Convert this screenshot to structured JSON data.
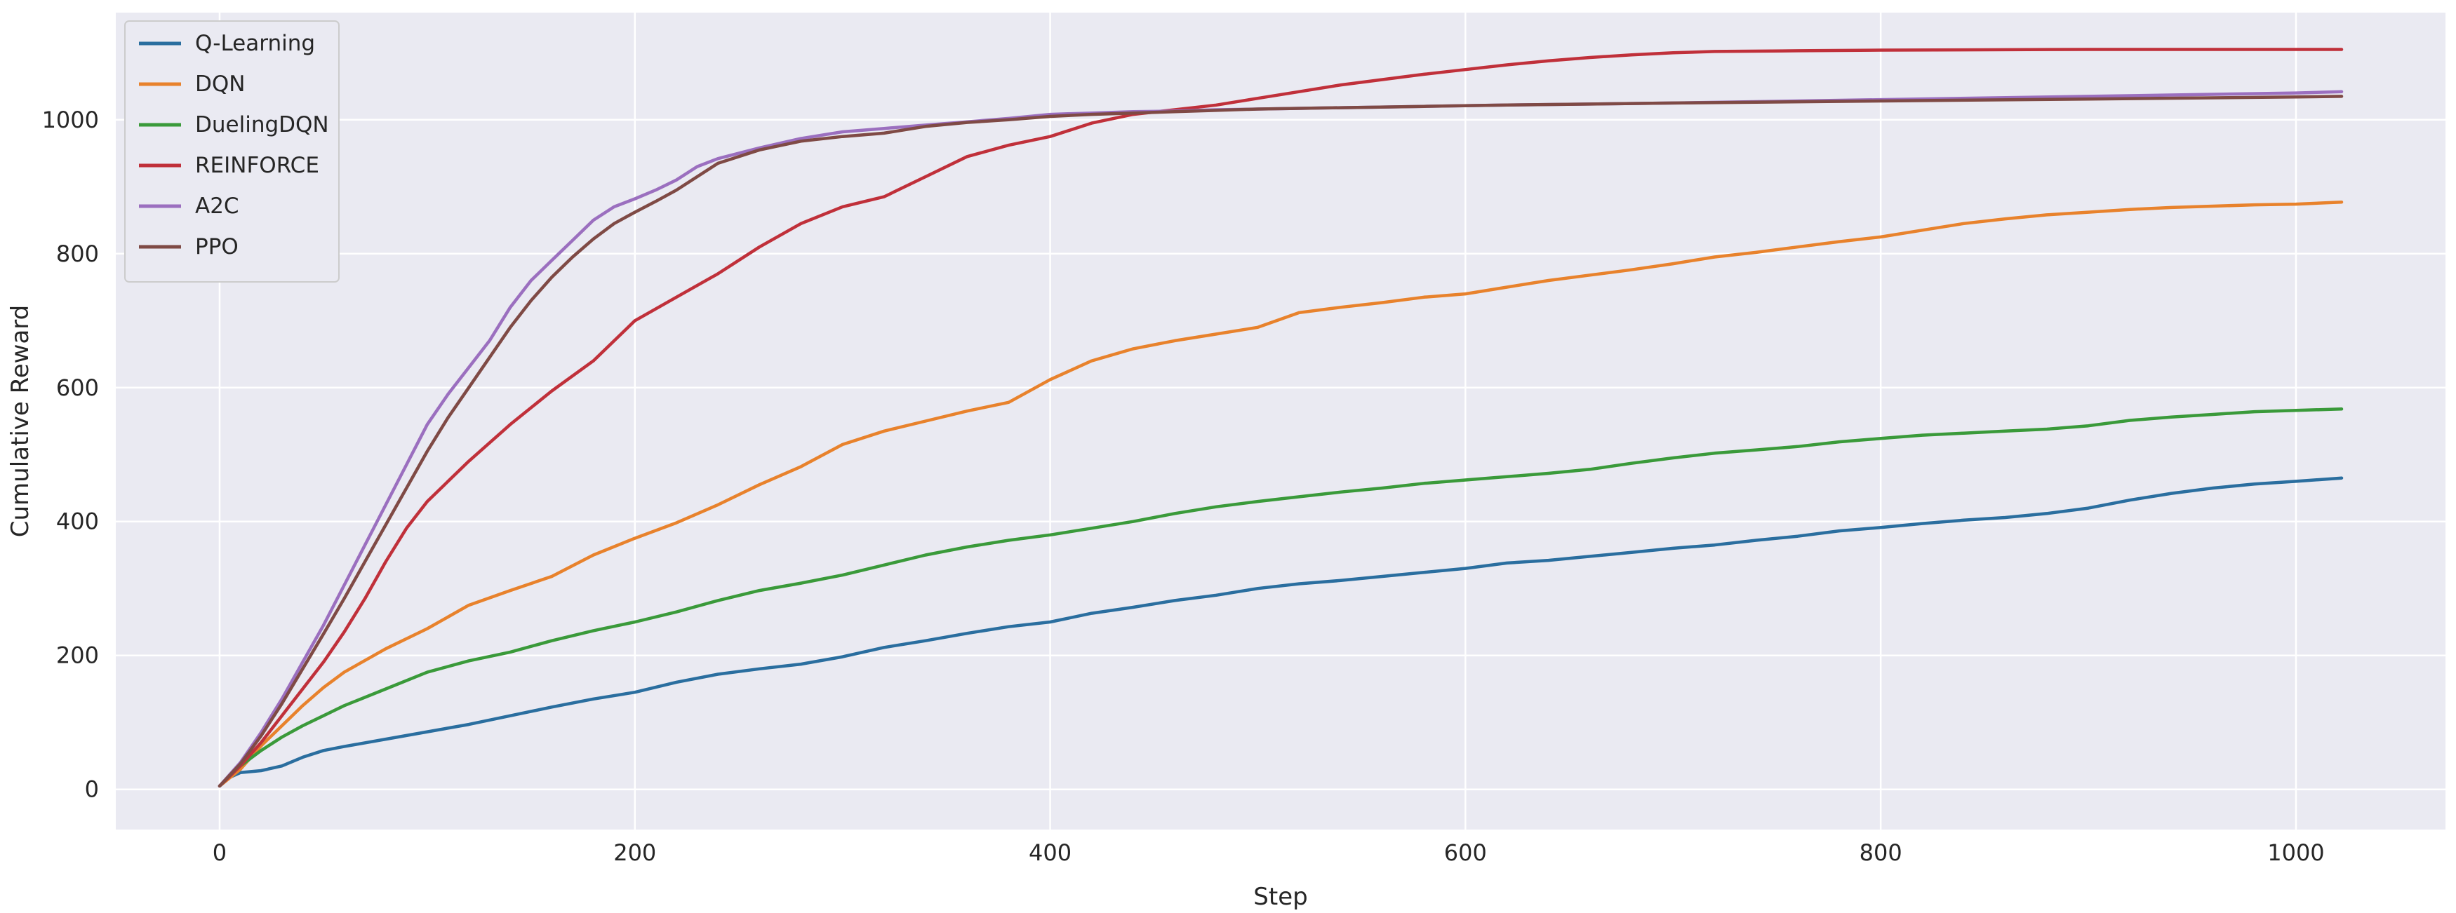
{
  "chart_data": {
    "type": "line",
    "title": "",
    "xlabel": "Step",
    "ylabel": "Cumulative Reward",
    "xlim": [
      -50,
      1072
    ],
    "ylim": [
      -60,
      1160
    ],
    "xticks": [
      0,
      200,
      400,
      600,
      800,
      1000
    ],
    "yticks": [
      0,
      200,
      400,
      600,
      800,
      1000
    ],
    "grid": true,
    "legend_position": "top-left",
    "background": "#eaeaf2",
    "series": [
      {
        "name": "Q-Learning",
        "color": "#2a6e9f",
        "points": [
          [
            0,
            5
          ],
          [
            5,
            18
          ],
          [
            10,
            25
          ],
          [
            20,
            28
          ],
          [
            30,
            35
          ],
          [
            40,
            48
          ],
          [
            50,
            58
          ],
          [
            60,
            64
          ],
          [
            80,
            75
          ],
          [
            100,
            86
          ],
          [
            120,
            97
          ],
          [
            140,
            110
          ],
          [
            160,
            123
          ],
          [
            180,
            135
          ],
          [
            200,
            145
          ],
          [
            220,
            160
          ],
          [
            240,
            172
          ],
          [
            260,
            180
          ],
          [
            280,
            187
          ],
          [
            300,
            198
          ],
          [
            320,
            212
          ],
          [
            340,
            222
          ],
          [
            360,
            233
          ],
          [
            380,
            243
          ],
          [
            400,
            250
          ],
          [
            420,
            263
          ],
          [
            440,
            272
          ],
          [
            460,
            282
          ],
          [
            480,
            290
          ],
          [
            500,
            300
          ],
          [
            520,
            307
          ],
          [
            540,
            312
          ],
          [
            560,
            318
          ],
          [
            580,
            324
          ],
          [
            600,
            330
          ],
          [
            620,
            338
          ],
          [
            640,
            342
          ],
          [
            660,
            348
          ],
          [
            680,
            354
          ],
          [
            700,
            360
          ],
          [
            720,
            365
          ],
          [
            740,
            372
          ],
          [
            760,
            378
          ],
          [
            780,
            386
          ],
          [
            800,
            391
          ],
          [
            820,
            397
          ],
          [
            840,
            402
          ],
          [
            860,
            406
          ],
          [
            880,
            412
          ],
          [
            900,
            420
          ],
          [
            920,
            432
          ],
          [
            940,
            442
          ],
          [
            960,
            450
          ],
          [
            980,
            456
          ],
          [
            1000,
            460
          ],
          [
            1022,
            465
          ]
        ]
      },
      {
        "name": "DQN",
        "color": "#e8822c",
        "points": [
          [
            0,
            5
          ],
          [
            10,
            30
          ],
          [
            20,
            65
          ],
          [
            30,
            95
          ],
          [
            40,
            125
          ],
          [
            50,
            152
          ],
          [
            60,
            175
          ],
          [
            80,
            210
          ],
          [
            100,
            240
          ],
          [
            120,
            275
          ],
          [
            140,
            297
          ],
          [
            160,
            318
          ],
          [
            180,
            350
          ],
          [
            200,
            375
          ],
          [
            220,
            398
          ],
          [
            240,
            425
          ],
          [
            260,
            455
          ],
          [
            280,
            482
          ],
          [
            300,
            515
          ],
          [
            320,
            535
          ],
          [
            340,
            550
          ],
          [
            360,
            565
          ],
          [
            380,
            578
          ],
          [
            400,
            612
          ],
          [
            420,
            640
          ],
          [
            440,
            658
          ],
          [
            460,
            670
          ],
          [
            480,
            680
          ],
          [
            500,
            690
          ],
          [
            520,
            712
          ],
          [
            540,
            720
          ],
          [
            560,
            727
          ],
          [
            580,
            735
          ],
          [
            600,
            740
          ],
          [
            620,
            750
          ],
          [
            640,
            760
          ],
          [
            660,
            768
          ],
          [
            680,
            776
          ],
          [
            700,
            785
          ],
          [
            720,
            795
          ],
          [
            740,
            802
          ],
          [
            760,
            810
          ],
          [
            780,
            818
          ],
          [
            800,
            825
          ],
          [
            820,
            835
          ],
          [
            840,
            845
          ],
          [
            860,
            852
          ],
          [
            880,
            858
          ],
          [
            900,
            862
          ],
          [
            920,
            866
          ],
          [
            940,
            869
          ],
          [
            960,
            871
          ],
          [
            980,
            873
          ],
          [
            1000,
            874
          ],
          [
            1022,
            877
          ]
        ]
      },
      {
        "name": "DuelingDQN",
        "color": "#3a9a3a",
        "points": [
          [
            0,
            5
          ],
          [
            10,
            35
          ],
          [
            20,
            58
          ],
          [
            30,
            78
          ],
          [
            40,
            95
          ],
          [
            50,
            110
          ],
          [
            60,
            125
          ],
          [
            80,
            150
          ],
          [
            100,
            175
          ],
          [
            120,
            192
          ],
          [
            140,
            205
          ],
          [
            160,
            222
          ],
          [
            180,
            237
          ],
          [
            200,
            250
          ],
          [
            220,
            265
          ],
          [
            240,
            282
          ],
          [
            260,
            297
          ],
          [
            280,
            308
          ],
          [
            300,
            320
          ],
          [
            320,
            335
          ],
          [
            340,
            350
          ],
          [
            360,
            362
          ],
          [
            380,
            372
          ],
          [
            400,
            380
          ],
          [
            420,
            390
          ],
          [
            440,
            400
          ],
          [
            460,
            412
          ],
          [
            480,
            422
          ],
          [
            500,
            430
          ],
          [
            520,
            437
          ],
          [
            540,
            444
          ],
          [
            560,
            450
          ],
          [
            580,
            457
          ],
          [
            600,
            462
          ],
          [
            620,
            467
          ],
          [
            640,
            472
          ],
          [
            660,
            478
          ],
          [
            680,
            487
          ],
          [
            700,
            495
          ],
          [
            720,
            502
          ],
          [
            740,
            507
          ],
          [
            760,
            512
          ],
          [
            780,
            519
          ],
          [
            800,
            524
          ],
          [
            820,
            529
          ],
          [
            840,
            532
          ],
          [
            860,
            535
          ],
          [
            880,
            538
          ],
          [
            900,
            543
          ],
          [
            920,
            551
          ],
          [
            940,
            556
          ],
          [
            960,
            560
          ],
          [
            980,
            564
          ],
          [
            1000,
            566
          ],
          [
            1022,
            568
          ]
        ]
      },
      {
        "name": "REINFORCE",
        "color": "#c0303a",
        "points": [
          [
            0,
            5
          ],
          [
            10,
            35
          ],
          [
            20,
            70
          ],
          [
            30,
            110
          ],
          [
            40,
            150
          ],
          [
            50,
            190
          ],
          [
            60,
            235
          ],
          [
            70,
            285
          ],
          [
            80,
            340
          ],
          [
            90,
            390
          ],
          [
            100,
            430
          ],
          [
            120,
            490
          ],
          [
            140,
            545
          ],
          [
            160,
            595
          ],
          [
            180,
            640
          ],
          [
            200,
            700
          ],
          [
            220,
            735
          ],
          [
            240,
            770
          ],
          [
            260,
            810
          ],
          [
            280,
            845
          ],
          [
            300,
            870
          ],
          [
            320,
            885
          ],
          [
            340,
            915
          ],
          [
            360,
            945
          ],
          [
            380,
            962
          ],
          [
            400,
            975
          ],
          [
            420,
            995
          ],
          [
            440,
            1008
          ],
          [
            460,
            1015
          ],
          [
            480,
            1022
          ],
          [
            500,
            1032
          ],
          [
            520,
            1042
          ],
          [
            540,
            1052
          ],
          [
            560,
            1060
          ],
          [
            580,
            1068
          ],
          [
            600,
            1075
          ],
          [
            620,
            1082
          ],
          [
            640,
            1088
          ],
          [
            660,
            1093
          ],
          [
            680,
            1097
          ],
          [
            700,
            1100
          ],
          [
            720,
            1102
          ],
          [
            760,
            1103
          ],
          [
            800,
            1104
          ],
          [
            900,
            1105
          ],
          [
            1000,
            1105
          ],
          [
            1022,
            1105
          ]
        ]
      },
      {
        "name": "A2C",
        "color": "#9b6fbf",
        "points": [
          [
            0,
            5
          ],
          [
            10,
            40
          ],
          [
            20,
            85
          ],
          [
            30,
            135
          ],
          [
            40,
            190
          ],
          [
            50,
            245
          ],
          [
            60,
            305
          ],
          [
            70,
            365
          ],
          [
            80,
            425
          ],
          [
            90,
            485
          ],
          [
            100,
            545
          ],
          [
            110,
            590
          ],
          [
            120,
            630
          ],
          [
            130,
            670
          ],
          [
            140,
            720
          ],
          [
            150,
            760
          ],
          [
            160,
            790
          ],
          [
            170,
            820
          ],
          [
            180,
            850
          ],
          [
            190,
            870
          ],
          [
            200,
            882
          ],
          [
            210,
            895
          ],
          [
            220,
            910
          ],
          [
            230,
            930
          ],
          [
            240,
            942
          ],
          [
            260,
            958
          ],
          [
            280,
            972
          ],
          [
            300,
            982
          ],
          [
            320,
            987
          ],
          [
            340,
            992
          ],
          [
            360,
            997
          ],
          [
            380,
            1002
          ],
          [
            400,
            1008
          ],
          [
            420,
            1010
          ],
          [
            440,
            1012
          ],
          [
            460,
            1013
          ],
          [
            480,
            1015
          ],
          [
            500,
            1016
          ],
          [
            540,
            1018
          ],
          [
            580,
            1020
          ],
          [
            620,
            1022
          ],
          [
            700,
            1025
          ],
          [
            800,
            1030
          ],
          [
            900,
            1035
          ],
          [
            1000,
            1040
          ],
          [
            1022,
            1042
          ]
        ]
      },
      {
        "name": "PPO",
        "color": "#7f4a45",
        "points": [
          [
            0,
            5
          ],
          [
            10,
            38
          ],
          [
            20,
            80
          ],
          [
            30,
            128
          ],
          [
            40,
            180
          ],
          [
            50,
            232
          ],
          [
            60,
            285
          ],
          [
            70,
            340
          ],
          [
            80,
            395
          ],
          [
            90,
            450
          ],
          [
            100,
            505
          ],
          [
            110,
            555
          ],
          [
            120,
            600
          ],
          [
            130,
            645
          ],
          [
            140,
            690
          ],
          [
            150,
            730
          ],
          [
            160,
            765
          ],
          [
            170,
            795
          ],
          [
            180,
            822
          ],
          [
            190,
            845
          ],
          [
            200,
            862
          ],
          [
            210,
            878
          ],
          [
            220,
            895
          ],
          [
            230,
            915
          ],
          [
            240,
            935
          ],
          [
            260,
            955
          ],
          [
            280,
            968
          ],
          [
            300,
            975
          ],
          [
            320,
            980
          ],
          [
            340,
            990
          ],
          [
            360,
            996
          ],
          [
            380,
            1000
          ],
          [
            400,
            1005
          ],
          [
            420,
            1008
          ],
          [
            440,
            1010
          ],
          [
            460,
            1012
          ],
          [
            480,
            1014
          ],
          [
            500,
            1016
          ],
          [
            540,
            1018
          ],
          [
            580,
            1020
          ],
          [
            620,
            1022
          ],
          [
            700,
            1025
          ],
          [
            800,
            1028
          ],
          [
            900,
            1031
          ],
          [
            1000,
            1034
          ],
          [
            1022,
            1035
          ]
        ]
      }
    ]
  }
}
